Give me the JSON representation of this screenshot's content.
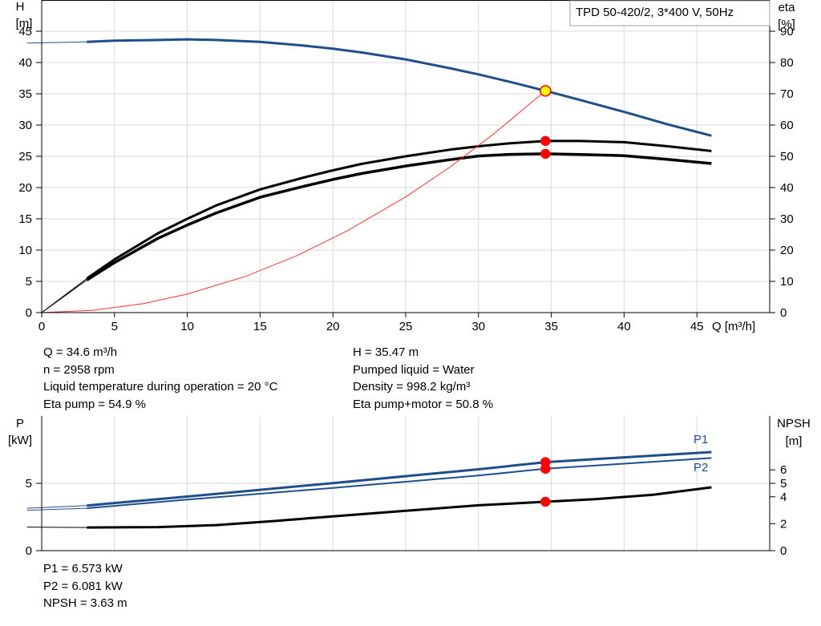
{
  "chart_data": [
    {
      "type": "line",
      "title": "TPD 50-420/2, 3*400 V, 50Hz",
      "xlabel": "Q [m³/h]",
      "xlim": [
        0,
        50
      ],
      "x_ticks": [
        0,
        5,
        10,
        15,
        20,
        25,
        30,
        35,
        40,
        45
      ],
      "ylabel_left": {
        "name": "H",
        "unit": "[m]"
      },
      "ylim_left": [
        0,
        50
      ],
      "y_ticks_left": [
        0,
        5,
        10,
        15,
        20,
        25,
        30,
        35,
        40,
        45
      ],
      "ylabel_right": {
        "name": "eta",
        "unit": "[%]"
      },
      "ylim_right": [
        0,
        100
      ],
      "y_ticks_right": [
        0,
        10,
        20,
        30,
        40,
        50,
        60,
        70,
        80,
        90
      ],
      "grid": true,
      "series": [
        {
          "key": "head",
          "axis": "left",
          "color": "#1f4e8c",
          "width": 3,
          "x": [
            -1,
            3.1,
            5,
            8,
            10,
            12,
            15,
            18,
            20,
            22,
            25,
            28,
            30,
            32,
            34.6,
            37,
            40,
            43,
            46
          ],
          "y": [
            43.1,
            43.3,
            43.5,
            43.6,
            43.7,
            43.6,
            43.3,
            42.7,
            42.2,
            41.6,
            40.5,
            39.1,
            38.1,
            37.0,
            35.47,
            34.0,
            32.1,
            30.1,
            28.3
          ]
        },
        {
          "key": "eta_pump",
          "axis": "right",
          "color": "#000000",
          "width": 3,
          "x": [
            3.1,
            5,
            8,
            10,
            12,
            15,
            18,
            20,
            22,
            25,
            28,
            30,
            32,
            34.6,
            37,
            40,
            43,
            46
          ],
          "y": [
            10.9,
            17,
            25.4,
            30,
            34.3,
            39.4,
            43.2,
            45.5,
            47.6,
            50.0,
            52.1,
            53.2,
            54.1,
            54.9,
            54.9,
            54.5,
            53.2,
            51.7
          ]
        },
        {
          "key": "eta_total",
          "axis": "right",
          "color": "#000000",
          "width": 3.5,
          "x": [
            3.1,
            5,
            8,
            10,
            12,
            15,
            18,
            20,
            22,
            25,
            28,
            30,
            32,
            34.6,
            37,
            40,
            43,
            46
          ],
          "y": [
            10.4,
            16,
            23.8,
            28,
            31.9,
            36.9,
            40.4,
            42.6,
            44.5,
            46.9,
            48.9,
            50.1,
            50.6,
            50.8,
            50.6,
            50.2,
            49.0,
            47.7
          ]
        },
        {
          "key": "system_curve",
          "axis": "left",
          "color": "#ff3030",
          "width": 1,
          "x": [
            0,
            3.5,
            7,
            10,
            14,
            17.5,
            21,
            25,
            28,
            31,
            34.6
          ],
          "y": [
            0,
            0.37,
            1.44,
            2.96,
            5.8,
            9.08,
            13.1,
            18.5,
            23.2,
            28.5,
            35.47
          ]
        }
      ],
      "thin_extensions": [
        {
          "axis": "left",
          "color": "#000000",
          "x": [
            0,
            3.1
          ],
          "y": [
            0,
            5.45
          ]
        },
        {
          "axis": "left",
          "color": "#000000",
          "x": [
            0,
            3.1
          ],
          "y": [
            0,
            5.2
          ]
        }
      ],
      "operating_points": [
        {
          "axis": "left",
          "x": 34.6,
          "y": 35.47,
          "fill": "#ffff00",
          "stroke": "#ff0000"
        },
        {
          "axis": "right",
          "x": 34.6,
          "y": 54.9,
          "fill": "#ff0000",
          "stroke": "#ff0000"
        },
        {
          "axis": "right",
          "x": 34.6,
          "y": 50.8,
          "fill": "#ff0000",
          "stroke": "#ff0000"
        }
      ]
    },
    {
      "type": "line",
      "xlim": [
        0,
        50
      ],
      "ylabel_left": {
        "name": "P",
        "unit": "[kW]"
      },
      "ylim_left": [
        0,
        10
      ],
      "y_ticks_left": [
        0,
        5
      ],
      "ylabel_right": {
        "name": "NPSH",
        "unit": "[m]"
      },
      "ylim_right": [
        0,
        10
      ],
      "y_ticks_right": [
        0,
        2,
        4,
        5,
        6
      ],
      "grid": true,
      "series": [
        {
          "key": "p1",
          "name": "P1",
          "axis": "left",
          "color": "#1f4e8c",
          "width": 3,
          "x": [
            -1,
            3.1,
            10,
            20,
            30,
            34.6,
            40,
            46
          ],
          "y": [
            3.15,
            3.35,
            4.02,
            5.02,
            6.04,
            6.573,
            6.93,
            7.32
          ]
        },
        {
          "key": "p2",
          "name": "P2",
          "axis": "left",
          "color": "#1f4e8c",
          "width": 2,
          "x": [
            -1,
            3.1,
            10,
            20,
            30,
            34.6,
            40,
            46
          ],
          "y": [
            3.0,
            3.15,
            3.79,
            4.66,
            5.58,
            6.081,
            6.46,
            6.88
          ]
        },
        {
          "key": "npsh",
          "axis": "right",
          "color": "#000000",
          "width": 3,
          "x": [
            -1,
            3.1,
            8,
            12,
            16,
            20,
            25,
            30,
            34.6,
            38,
            42,
            46
          ],
          "y": [
            1.75,
            1.72,
            1.75,
            1.9,
            2.2,
            2.55,
            2.96,
            3.37,
            3.63,
            3.82,
            4.15,
            4.7
          ]
        }
      ],
      "operating_points": [
        {
          "axis": "left",
          "x": 34.6,
          "y": 6.573,
          "fill": "#ff0000",
          "stroke": "#ff0000"
        },
        {
          "axis": "left",
          "x": 34.6,
          "y": 6.081,
          "fill": "#ff0000",
          "stroke": "#ff0000"
        },
        {
          "axis": "right",
          "x": 34.6,
          "y": 3.63,
          "fill": "#ff0000",
          "stroke": "#ff0000"
        }
      ]
    }
  ],
  "info_top": {
    "left": [
      "Q = 34.6 m³/h",
      "n = 2958 rpm",
      "Liquid temperature during operation = 20 °C",
      "Eta pump = 54.9 %"
    ],
    "right": [
      "H = 35.47 m",
      "Pumped liquid = Water",
      "Density = 998.2 kg/m³",
      "Eta pump+motor = 50.8 %"
    ]
  },
  "info_bottom": [
    "P1 = 6.573 kW",
    "P2 = 6.081 kW",
    "NPSH = 3.63 m"
  ]
}
